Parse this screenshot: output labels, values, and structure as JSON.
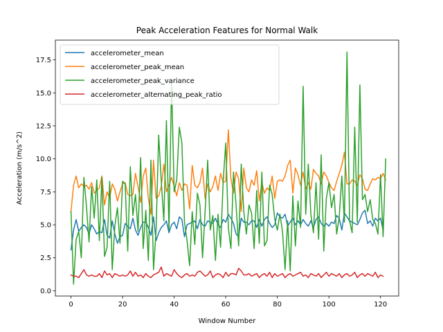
{
  "chart_data": {
    "type": "line",
    "title": "Peak Acceleration Features for Normal Walk",
    "xlabel": "Window Number",
    "ylabel": "Acceleration (m/s^2)",
    "xlim": [
      -6.05,
      127.05
    ],
    "ylim": [
      -0.4,
      19.0
    ],
    "xticks": [
      0,
      20,
      40,
      60,
      80,
      100,
      120
    ],
    "yticks": [
      0.0,
      2.5,
      5.0,
      7.5,
      10.0,
      12.5,
      15.0,
      17.5
    ],
    "ytick_labels": [
      "0.0",
      "2.5",
      "5.0",
      "7.5",
      "10.0",
      "12.5",
      "15.0",
      "17.5"
    ],
    "grid": false,
    "legend_position": "top-left",
    "series": [
      {
        "name": "accelerometer_mean",
        "color": "#1f77b4",
        "values": [
          3.1,
          4.6,
          5.4,
          4.5,
          4.8,
          5.0,
          4.8,
          4.3,
          5.0,
          4.7,
          4.3,
          4.5,
          4.4,
          5.4,
          4.2,
          4.0,
          5.3,
          4.3,
          3.6,
          4.1,
          4.2,
          5.1,
          4.9,
          4.7,
          5.5,
          4.6,
          4.2,
          4.8,
          5.2,
          5.2,
          4.8,
          4.2,
          5.6,
          3.8,
          4.4,
          4.8,
          5.0,
          5.3,
          4.4,
          5.0,
          5.2,
          4.7,
          5.6,
          5.4,
          4.1,
          5.0,
          5.1,
          5.2,
          5.3,
          4.7,
          5.4,
          5.0,
          4.9,
          5.3,
          5.2,
          5.1,
          5.5,
          5.0,
          4.8,
          5.4,
          5.2,
          5.8,
          5.5,
          5.1,
          4.3,
          4.1,
          5.5,
          5.2,
          5.2,
          5.0,
          5.3,
          5.3,
          4.8,
          5.4,
          4.9,
          5.4,
          5.6,
          5.1,
          4.8,
          5.0,
          5.9,
          5.6,
          5.5,
          5.8,
          4.9,
          5.2,
          5.5,
          5.0,
          5.3,
          5.0,
          5.4,
          5.1,
          4.9,
          5.3,
          4.8,
          5.4,
          5.6,
          5.1,
          4.9,
          5.1,
          4.9,
          5.2,
          5.1,
          5.7,
          5.5,
          4.6,
          5.9,
          5.6,
          5.3,
          5.2,
          5.1,
          5.0,
          5.4,
          5.9,
          6.1,
          5.1,
          5.3,
          4.9,
          5.5,
          5.3,
          5.5,
          4.6
        ]
      },
      {
        "name": "accelerometer_peak_mean",
        "color": "#ff7f0e",
        "values": [
          6.0,
          8.0,
          8.7,
          7.8,
          8.1,
          7.9,
          8.0,
          7.7,
          8.2,
          7.4,
          7.6,
          7.8,
          8.7,
          6.5,
          7.5,
          7.0,
          8.1,
          7.7,
          6.8,
          7.5,
          8.1,
          8.2,
          7.3,
          7.2,
          7.3,
          8.9,
          7.9,
          6.7,
          8.7,
          9.3,
          7.0,
          5.8,
          9.9,
          7.0,
          7.2,
          7.9,
          9.6,
          7.5,
          8.0,
          8.6,
          7.9,
          7.2,
          8.2,
          7.6,
          8.1,
          8.0,
          6.2,
          9.5,
          8.0,
          7.8,
          8.2,
          9.3,
          7.0,
          8.1,
          7.5,
          7.9,
          8.7,
          7.6,
          8.9,
          8.2,
          8.3,
          12.2,
          8.5,
          7.4,
          9.0,
          8.5,
          6.0,
          9.3,
          7.8,
          7.5,
          8.4,
          8.0,
          9.1,
          6.8,
          8.2,
          7.4,
          7.8,
          7.6,
          8.7,
          7.0,
          8.3,
          8.4,
          8.3,
          8.7,
          9.5,
          9.9,
          7.4,
          9.3,
          8.8,
          8.0,
          9.0,
          7.7,
          8.2,
          7.7,
          9.2,
          8.9,
          8.7,
          8.1,
          9.0,
          8.7,
          8.2,
          7.8,
          7.6,
          8.3,
          8.9,
          9.5,
          10.5,
          8.1,
          8.1,
          8.4,
          8.3,
          8.0,
          8.8,
          8.5,
          7.7,
          7.6,
          8.1,
          8.5,
          8.4,
          8.6,
          8.5,
          8.9,
          8.4
        ]
      },
      {
        "name": "accelerometer_peak_variance",
        "color": "#2ca02c",
        "values": [
          6.0,
          0.5,
          3.9,
          4.5,
          2.5,
          8.6,
          6.4,
          3.7,
          7.9,
          5.5,
          8.4,
          3.8,
          8.6,
          2.6,
          3.3,
          8.3,
          1.6,
          4.9,
          6.3,
          3.6,
          8.3,
          8.1,
          3.0,
          9.4,
          5.7,
          7.3,
          4.5,
          10.1,
          3.2,
          6.1,
          2.3,
          9.9,
          1.6,
          4.6,
          11.8,
          8.3,
          5.3,
          12.9,
          4.6,
          15.8,
          7.5,
          8.4,
          12.4,
          11.2,
          5.2,
          3.8,
          1.9,
          6.0,
          3.5,
          7.4,
          6.5,
          2.5,
          6.0,
          9.9,
          4.6,
          5.7,
          2.3,
          5.8,
          3.3,
          8.3,
          11.2,
          4.8,
          3.2,
          9.0,
          6.5,
          3.4,
          9.6,
          6.0,
          4.3,
          6.5,
          5.9,
          3.2,
          7.6,
          3.6,
          9.0,
          3.4,
          3.8,
          8.0,
          7.3,
          5.4,
          4.6,
          5.8,
          4.5,
          1.6,
          5.3,
          1.5,
          7.2,
          3.4,
          6.8,
          4.8,
          15.5,
          5.8,
          9.6,
          5.8,
          4.4,
          8.2,
          3.9,
          10.3,
          3.0,
          7.0,
          8.2,
          6.3,
          7.3,
          4.3,
          5.6,
          8.7,
          5.2,
          18.1,
          5.3,
          4.4,
          12.4,
          5.2,
          15.6,
          6.9,
          7.3,
          6.0,
          6.9,
          5.4,
          5.1,
          4.3,
          8.8,
          4.1,
          10.0
        ]
      },
      {
        "name": "accelerometer_alternating_peak_ratio",
        "color": "#d62728",
        "values": [
          1.2,
          1.1,
          1.1,
          1.0,
          1.3,
          1.6,
          1.2,
          1.1,
          1.2,
          1.1,
          1.1,
          1.3,
          1.0,
          1.5,
          1.2,
          1.3,
          1.0,
          1.3,
          1.2,
          1.1,
          1.2,
          1.1,
          1.2,
          1.5,
          1.1,
          1.4,
          1.1,
          1.2,
          1.0,
          1.3,
          1.1,
          1.0,
          1.2,
          1.3,
          1.4,
          1.8,
          1.1,
          1.3,
          1.2,
          1.1,
          1.6,
          1.3,
          1.1,
          1.0,
          1.2,
          1.3,
          1.1,
          1.2,
          1.1,
          1.4,
          1.5,
          1.3,
          1.1,
          1.2,
          1.5,
          1.0,
          1.2,
          1.3,
          1.2,
          1.0,
          1.4,
          1.1,
          1.3,
          1.3,
          1.2,
          1.7,
          1.5,
          1.2,
          1.2,
          1.3,
          1.1,
          1.2,
          1.3,
          1.0,
          1.2,
          1.3,
          1.1,
          1.4,
          1.0,
          1.3,
          1.1,
          1.2,
          1.3,
          1.0,
          1.2,
          1.3,
          1.1,
          1.2,
          1.3,
          1.4,
          1.1,
          1.2,
          1.0,
          1.3,
          1.2,
          1.1,
          1.3,
          1.0,
          1.2,
          1.4,
          1.1,
          1.3,
          1.2,
          1.1,
          1.3,
          1.0,
          1.2,
          1.3,
          1.1,
          1.2,
          1.4,
          1.0,
          1.2,
          1.3,
          1.1,
          1.3,
          1.2,
          1.1,
          1.4,
          1.0,
          1.2,
          1.1
        ]
      }
    ]
  }
}
